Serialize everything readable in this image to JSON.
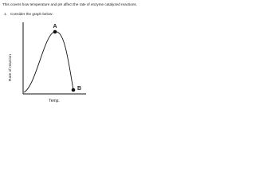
{
  "header": {
    "intro": "This covers how temperature and pH affect the rate of enzyme catalyzed reactions.",
    "question_number": "1.",
    "question": "Consider the graph below:"
  },
  "graph": {
    "y_label": "Rate of reaction",
    "x_label": "Temp.",
    "points": [
      {
        "label": "A"
      },
      {
        "label": "B"
      }
    ]
  }
}
